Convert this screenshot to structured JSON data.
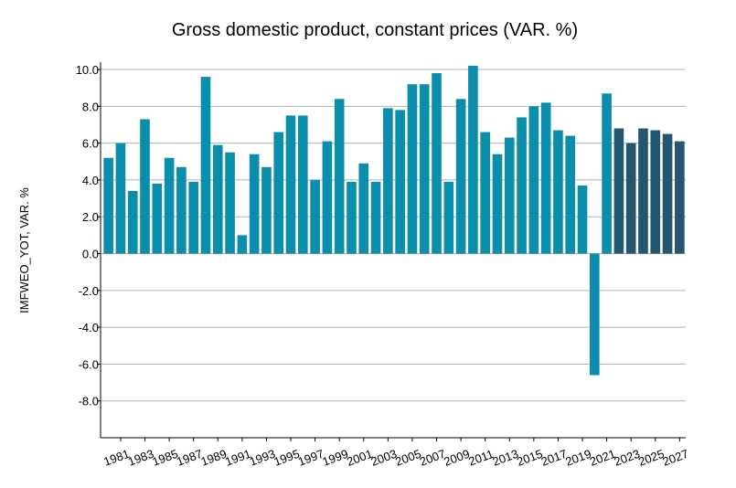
{
  "chart_data": {
    "type": "bar",
    "title": "Gross domestic product, constant prices (VAR. %)",
    "xlabel": "",
    "ylabel": "IMFWEO_YOT, VAR. %",
    "ylim": [
      -10,
      10.3
    ],
    "yticks": [
      10.0,
      8.0,
      6.0,
      4.0,
      2.0,
      0.0,
      -2.0,
      -4.0,
      -6.0,
      -8.0
    ],
    "ytick_labels": [
      "10.0",
      "8.0",
      "6.0",
      "4.0",
      "2.0",
      "0.0",
      "-2.0",
      "-4.0",
      "-6.0",
      "-8.0"
    ],
    "xtick_labels": [
      "1981",
      "1983",
      "1985",
      "1987",
      "1989",
      "1991",
      "1993",
      "1995",
      "1997",
      "1999",
      "2001",
      "2003",
      "2005",
      "2007",
      "2009",
      "2011",
      "2013",
      "2015",
      "2017",
      "2019",
      "2021",
      "2023",
      "2025",
      "2027"
    ],
    "categories": [
      "1980",
      "1981",
      "1982",
      "1983",
      "1984",
      "1985",
      "1986",
      "1987",
      "1988",
      "1989",
      "1990",
      "1991",
      "1992",
      "1993",
      "1994",
      "1995",
      "1996",
      "1997",
      "1998",
      "1999",
      "2000",
      "2001",
      "2002",
      "2003",
      "2004",
      "2005",
      "2006",
      "2007",
      "2008",
      "2009",
      "2010",
      "2011",
      "2012",
      "2013",
      "2014",
      "2015",
      "2016",
      "2017",
      "2018",
      "2019",
      "2020",
      "2021",
      "2022",
      "2023",
      "2024",
      "2025",
      "2026",
      "2027"
    ],
    "values": [
      5.2,
      6.0,
      3.4,
      7.3,
      3.8,
      5.2,
      4.7,
      3.9,
      9.6,
      5.9,
      5.5,
      1.0,
      5.4,
      4.7,
      6.6,
      7.5,
      7.5,
      4.0,
      6.1,
      8.4,
      3.9,
      4.9,
      3.9,
      7.9,
      7.8,
      9.2,
      9.2,
      9.8,
      3.9,
      8.4,
      10.2,
      6.6,
      5.4,
      6.3,
      7.4,
      8.0,
      8.2,
      6.7,
      6.4,
      3.7,
      -6.6,
      8.7,
      6.8,
      6.0,
      6.8,
      6.7,
      6.5,
      6.1
    ],
    "projection_start_year": "2022",
    "grid": "horizontal",
    "colors": {
      "actual": "#0b8eab",
      "projection": "#24566f",
      "grid": "#b0b0b0",
      "axis": "#000000"
    }
  }
}
